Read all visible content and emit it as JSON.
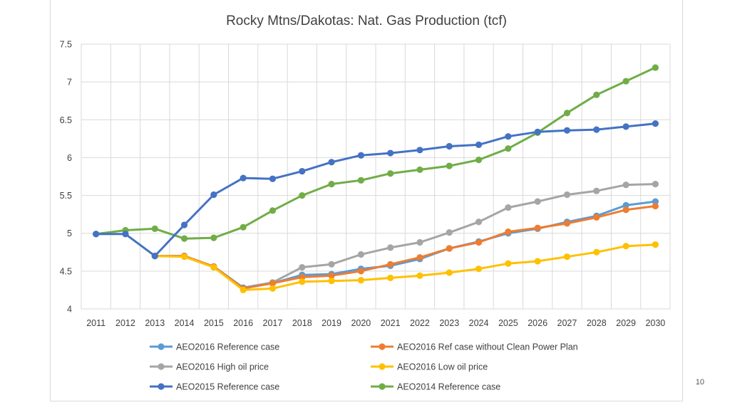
{
  "page_number": "10",
  "chart_data": {
    "type": "line",
    "title": "Rocky Mtns/Dakotas: Nat. Gas Production (tcf)",
    "xlabel": "",
    "ylabel": "",
    "ylim": [
      4,
      7.5
    ],
    "y_ticks": [
      "4",
      "4.5",
      "5",
      "5.5",
      "6",
      "6.5",
      "7",
      "7.5"
    ],
    "y_tick_values": [
      4,
      4.5,
      5,
      5.5,
      6,
      6.5,
      7,
      7.5
    ],
    "grid": true,
    "legend_position": "bottom",
    "categories": [
      "2011",
      "2012",
      "2013",
      "2014",
      "2015",
      "2016",
      "2017",
      "2018",
      "2019",
      "2020",
      "2021",
      "2022",
      "2023",
      "2024",
      "2025",
      "2026",
      "2027",
      "2028",
      "2029",
      "2030"
    ],
    "series": [
      {
        "name": "AEO2014 Reference case",
        "color": "#70AD47",
        "values": [
          4.99,
          5.04,
          5.06,
          4.93,
          4.94,
          5.08,
          5.3,
          5.5,
          5.65,
          5.7,
          5.79,
          5.84,
          5.89,
          5.97,
          6.12,
          6.33,
          6.59,
          6.83,
          7.01,
          7.19
        ]
      },
      {
        "name": "AEO2016 High oil price",
        "color": "#A5A5A5",
        "values": [
          null,
          null,
          4.7,
          4.7,
          4.56,
          4.28,
          4.35,
          4.55,
          4.59,
          4.72,
          4.81,
          4.88,
          5.01,
          5.15,
          5.34,
          5.42,
          5.51,
          5.56,
          5.64,
          5.65
        ]
      },
      {
        "name": "AEO2016 Reference case",
        "color": "#5B9BD5",
        "values": [
          null,
          null,
          4.7,
          4.7,
          4.56,
          4.28,
          4.34,
          4.45,
          4.46,
          4.53,
          4.57,
          4.66,
          4.8,
          4.89,
          5.0,
          5.06,
          5.15,
          5.23,
          5.37,
          5.42
        ]
      },
      {
        "name": "AEO2016 Ref case without Clean Power Plan",
        "color": "#ED7D31",
        "values": [
          null,
          null,
          4.7,
          4.7,
          4.56,
          4.27,
          4.34,
          4.42,
          4.44,
          4.5,
          4.59,
          4.68,
          4.8,
          4.88,
          5.02,
          5.07,
          5.13,
          5.21,
          5.31,
          5.36
        ]
      },
      {
        "name": "AEO2016 Low oil price",
        "color": "#FFC000",
        "values": [
          null,
          null,
          4.7,
          4.69,
          4.55,
          4.25,
          4.27,
          4.36,
          4.37,
          4.38,
          4.41,
          4.44,
          4.48,
          4.53,
          4.6,
          4.63,
          4.69,
          4.75,
          4.83,
          4.85
        ]
      },
      {
        "name": "AEO2015 Reference case",
        "color": "#4472C4",
        "values": [
          4.99,
          4.99,
          4.7,
          5.11,
          5.51,
          5.73,
          5.72,
          5.82,
          5.94,
          6.03,
          6.06,
          6.1,
          6.15,
          6.17,
          6.28,
          6.34,
          6.36,
          6.37,
          6.41,
          6.45
        ]
      }
    ],
    "legend": [
      {
        "name": "AEO2016 Reference case",
        "color": "#5B9BD5"
      },
      {
        "name": "AEO2016 Ref case without Clean Power Plan",
        "color": "#ED7D31"
      },
      {
        "name": "AEO2016 High oil price",
        "color": "#A5A5A5"
      },
      {
        "name": "AEO2016 Low oil price",
        "color": "#FFC000"
      },
      {
        "name": "AEO2015 Reference case",
        "color": "#4472C4"
      },
      {
        "name": "AEO2014 Reference case",
        "color": "#70AD47"
      }
    ]
  }
}
